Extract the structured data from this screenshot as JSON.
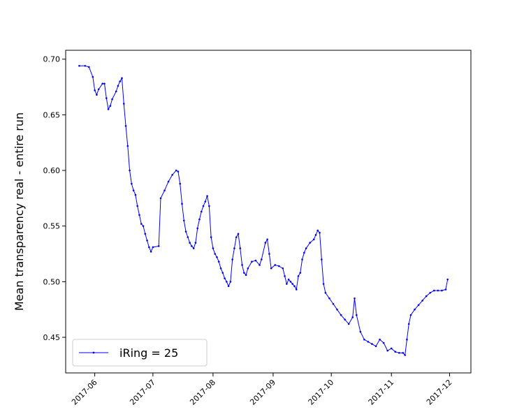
{
  "chart_data": {
    "type": "line",
    "title": "",
    "xlabel": "",
    "ylabel": "Mean transparency real - entire run",
    "xlim": [
      "2017-05-17",
      "2017-12-12"
    ],
    "ylim": [
      0.418,
      0.708
    ],
    "x_ticks": [
      "2017-06",
      "2017-07",
      "2017-08",
      "2017-09",
      "2017-10",
      "2017-11",
      "2017-12"
    ],
    "y_ticks": [
      "0.45",
      "0.50",
      "0.55",
      "0.60",
      "0.65",
      "0.70"
    ],
    "grid": false,
    "legend_position": "lower-left",
    "series": [
      {
        "name": "iRing = 25",
        "color": "#0000ff",
        "marker": "point",
        "points": [
          [
            "2017-05-24",
            0.694
          ],
          [
            "2017-05-27",
            0.694
          ],
          [
            "2017-05-29",
            0.693
          ],
          [
            "2017-05-31",
            0.684
          ],
          [
            "2017-06-01",
            0.672
          ],
          [
            "2017-06-02",
            0.668
          ],
          [
            "2017-06-03",
            0.673
          ],
          [
            "2017-06-05",
            0.678
          ],
          [
            "2017-06-06",
            0.678
          ],
          [
            "2017-06-07",
            0.665
          ],
          [
            "2017-06-08",
            0.655
          ],
          [
            "2017-06-09",
            0.658
          ],
          [
            "2017-06-10",
            0.664
          ],
          [
            "2017-06-12",
            0.671
          ],
          [
            "2017-06-13",
            0.676
          ],
          [
            "2017-06-14",
            0.68
          ],
          [
            "2017-06-15",
            0.683
          ],
          [
            "2017-06-16",
            0.66
          ],
          [
            "2017-06-17",
            0.64
          ],
          [
            "2017-06-18",
            0.622
          ],
          [
            "2017-06-19",
            0.6
          ],
          [
            "2017-06-20",
            0.588
          ],
          [
            "2017-06-21",
            0.582
          ],
          [
            "2017-06-22",
            0.578
          ],
          [
            "2017-06-23",
            0.568
          ],
          [
            "2017-06-24",
            0.56
          ],
          [
            "2017-06-25",
            0.552
          ],
          [
            "2017-06-26",
            0.55
          ],
          [
            "2017-06-27",
            0.543
          ],
          [
            "2017-06-28",
            0.537
          ],
          [
            "2017-06-29",
            0.531
          ],
          [
            "2017-06-30",
            0.527
          ],
          [
            "2017-07-01",
            0.531
          ],
          [
            "2017-07-04",
            0.532
          ],
          [
            "2017-07-05",
            0.575
          ],
          [
            "2017-07-07",
            0.582
          ],
          [
            "2017-07-09",
            0.59
          ],
          [
            "2017-07-11",
            0.596
          ],
          [
            "2017-07-13",
            0.6
          ],
          [
            "2017-07-14",
            0.599
          ],
          [
            "2017-07-15",
            0.588
          ],
          [
            "2017-07-16",
            0.57
          ],
          [
            "2017-07-17",
            0.555
          ],
          [
            "2017-07-18",
            0.545
          ],
          [
            "2017-07-19",
            0.54
          ],
          [
            "2017-07-20",
            0.535
          ],
          [
            "2017-07-21",
            0.532
          ],
          [
            "2017-07-22",
            0.53
          ],
          [
            "2017-07-23",
            0.535
          ],
          [
            "2017-07-24",
            0.548
          ],
          [
            "2017-07-25",
            0.556
          ],
          [
            "2017-07-26",
            0.563
          ],
          [
            "2017-07-27",
            0.568
          ],
          [
            "2017-07-28",
            0.572
          ],
          [
            "2017-07-29",
            0.577
          ],
          [
            "2017-07-30",
            0.568
          ],
          [
            "2017-07-31",
            0.54
          ],
          [
            "2017-08-01",
            0.53
          ],
          [
            "2017-08-02",
            0.525
          ],
          [
            "2017-08-03",
            0.522
          ],
          [
            "2017-08-04",
            0.518
          ],
          [
            "2017-08-05",
            0.512
          ],
          [
            "2017-08-06",
            0.508
          ],
          [
            "2017-08-07",
            0.503
          ],
          [
            "2017-08-08",
            0.5
          ],
          [
            "2017-08-09",
            0.496
          ],
          [
            "2017-08-10",
            0.5
          ],
          [
            "2017-08-11",
            0.52
          ],
          [
            "2017-08-12",
            0.53
          ],
          [
            "2017-08-13",
            0.54
          ],
          [
            "2017-08-14",
            0.543
          ],
          [
            "2017-08-15",
            0.53
          ],
          [
            "2017-08-16",
            0.515
          ],
          [
            "2017-08-17",
            0.508
          ],
          [
            "2017-08-18",
            0.506
          ],
          [
            "2017-08-19",
            0.512
          ],
          [
            "2017-08-21",
            0.518
          ],
          [
            "2017-08-23",
            0.519
          ],
          [
            "2017-08-25",
            0.515
          ],
          [
            "2017-08-26",
            0.52
          ],
          [
            "2017-08-28",
            0.535
          ],
          [
            "2017-08-29",
            0.538
          ],
          [
            "2017-08-30",
            0.525
          ],
          [
            "2017-08-31",
            0.512
          ],
          [
            "2017-09-02",
            0.515
          ],
          [
            "2017-09-04",
            0.514
          ],
          [
            "2017-09-06",
            0.512
          ],
          [
            "2017-09-07",
            0.505
          ],
          [
            "2017-09-08",
            0.498
          ],
          [
            "2017-09-09",
            0.502
          ],
          [
            "2017-09-10",
            0.5
          ],
          [
            "2017-09-11",
            0.498
          ],
          [
            "2017-09-12",
            0.496
          ],
          [
            "2017-09-13",
            0.493
          ],
          [
            "2017-09-14",
            0.505
          ],
          [
            "2017-09-15",
            0.508
          ],
          [
            "2017-09-16",
            0.52
          ],
          [
            "2017-09-17",
            0.526
          ],
          [
            "2017-09-18",
            0.53
          ],
          [
            "2017-09-20",
            0.535
          ],
          [
            "2017-09-22",
            0.538
          ],
          [
            "2017-09-23",
            0.542
          ],
          [
            "2017-09-24",
            0.546
          ],
          [
            "2017-09-25",
            0.544
          ],
          [
            "2017-09-26",
            0.52
          ],
          [
            "2017-09-27",
            0.498
          ],
          [
            "2017-09-28",
            0.49
          ],
          [
            "2017-09-30",
            0.485
          ],
          [
            "2017-10-02",
            0.48
          ],
          [
            "2017-10-04",
            0.475
          ],
          [
            "2017-10-06",
            0.47
          ],
          [
            "2017-10-08",
            0.466
          ],
          [
            "2017-10-10",
            0.462
          ],
          [
            "2017-10-12",
            0.468
          ],
          [
            "2017-10-13",
            0.485
          ],
          [
            "2017-10-14",
            0.47
          ],
          [
            "2017-10-16",
            0.455
          ],
          [
            "2017-10-18",
            0.448
          ],
          [
            "2017-10-20",
            0.446
          ],
          [
            "2017-10-22",
            0.444
          ],
          [
            "2017-10-24",
            0.442
          ],
          [
            "2017-10-26",
            0.448
          ],
          [
            "2017-10-28",
            0.445
          ],
          [
            "2017-10-30",
            0.438
          ],
          [
            "2017-11-01",
            0.44
          ],
          [
            "2017-11-03",
            0.437
          ],
          [
            "2017-11-05",
            0.436
          ],
          [
            "2017-11-07",
            0.436
          ],
          [
            "2017-11-08",
            0.434
          ],
          [
            "2017-11-09",
            0.448
          ],
          [
            "2017-11-10",
            0.462
          ],
          [
            "2017-11-11",
            0.47
          ],
          [
            "2017-11-13",
            0.475
          ],
          [
            "2017-11-15",
            0.479
          ],
          [
            "2017-11-17",
            0.483
          ],
          [
            "2017-11-19",
            0.487
          ],
          [
            "2017-11-21",
            0.49
          ],
          [
            "2017-11-23",
            0.492
          ],
          [
            "2017-11-25",
            0.492
          ],
          [
            "2017-11-27",
            0.492
          ],
          [
            "2017-11-29",
            0.493
          ],
          [
            "2017-11-30",
            0.502
          ]
        ]
      }
    ]
  }
}
